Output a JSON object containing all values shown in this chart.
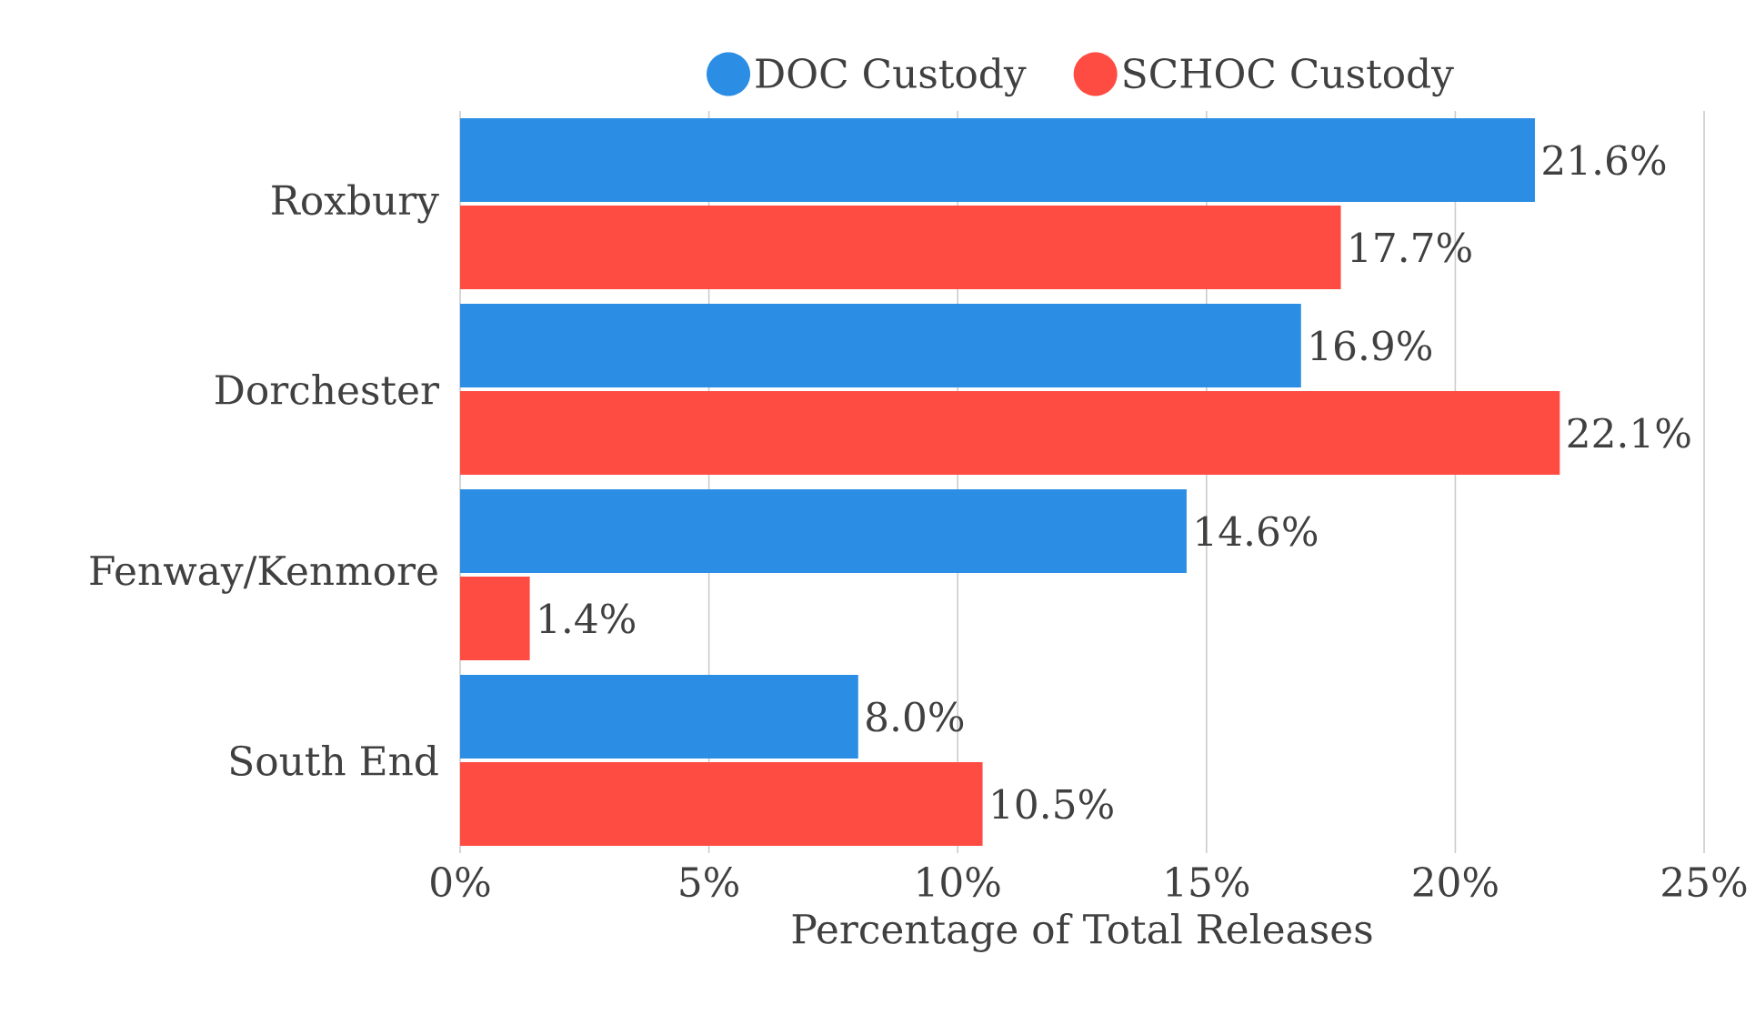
{
  "chart_data": {
    "type": "bar",
    "orientation": "horizontal",
    "categories": [
      "Roxbury",
      "Dorchester",
      "Fenway/Kenmore",
      "South End"
    ],
    "series": [
      {
        "name": "DOC Custody",
        "color": "#2b8de3",
        "values": [
          21.6,
          16.9,
          14.6,
          8.0
        ],
        "value_labels": [
          "21.6%",
          "16.9%",
          "14.6%",
          "8.0%"
        ]
      },
      {
        "name": "SCHOC Custody",
        "color": "#ff4c43",
        "values": [
          17.7,
          22.1,
          1.4,
          10.5
        ],
        "value_labels": [
          "17.7%",
          "22.1%",
          "1.4%",
          "10.5%"
        ]
      }
    ],
    "xlim": [
      0,
      25
    ],
    "xticks": [
      {
        "value": 0,
        "label": "0%"
      },
      {
        "value": 5,
        "label": "5%"
      },
      {
        "value": 10,
        "label": "10%"
      },
      {
        "value": 15,
        "label": "15%"
      },
      {
        "value": 20,
        "label": "20%"
      },
      {
        "value": 25,
        "label": "25%"
      }
    ],
    "xlabel": "Percentage of Total Releases",
    "grid": "x",
    "legend": "top"
  }
}
